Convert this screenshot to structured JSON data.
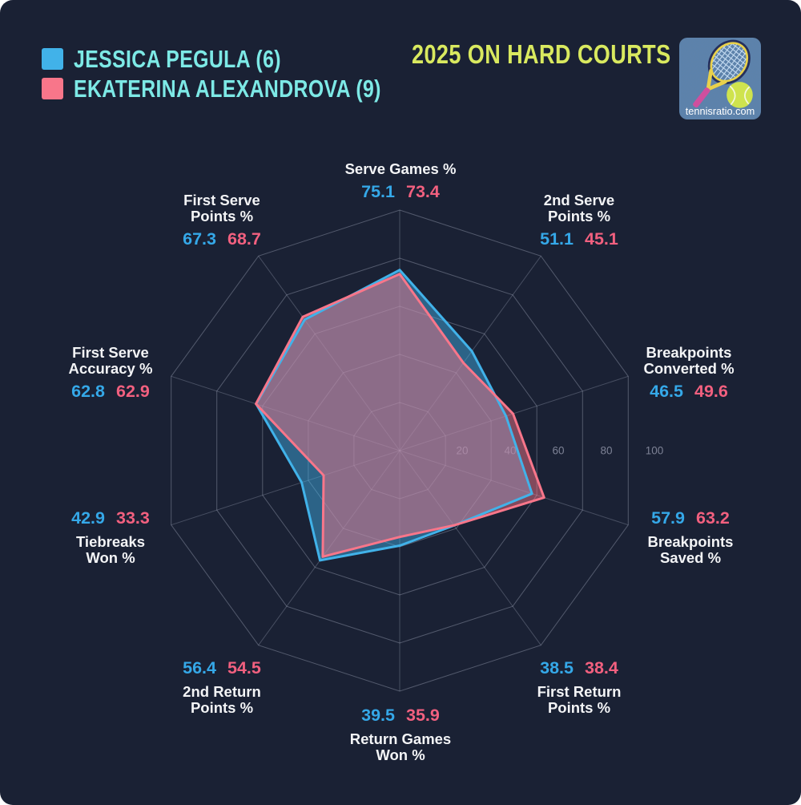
{
  "page": {
    "card_background": "#1a2134"
  },
  "chart_data": {
    "type": "radar",
    "title": "2025 ON HARD COURTS",
    "title_color": "#d9e95f",
    "watermark": "tennisratio.com",
    "legend_position": "top-left",
    "grid": true,
    "radial_axis": {
      "ticks": [
        20,
        40,
        60,
        80,
        100
      ],
      "range": [
        0,
        100
      ]
    },
    "categories": [
      "Serve Games %",
      "2nd Serve Points %",
      "Breakpoints Converted %",
      "Breakpoints Saved %",
      "First Return Points %",
      "Return Games Won %",
      "2nd Return Points %",
      "Tiebreaks Won %",
      "First Serve Accuracy %",
      "First Serve Points %"
    ],
    "series": [
      {
        "name": "JESSICA PEGULA (6)",
        "color": "#41b2e9",
        "fill": "rgba(66,178,233,0.46)",
        "values": [
          75.1,
          51.1,
          46.5,
          57.9,
          38.5,
          39.5,
          56.4,
          42.9,
          62.8,
          67.3
        ]
      },
      {
        "name": "EKATERINA ALEXANDROVA (9)",
        "color": "#f8768a",
        "fill": "rgba(248,118,138,0.47)",
        "values": [
          73.4,
          45.1,
          49.6,
          63.2,
          38.4,
          35.9,
          54.5,
          33.3,
          62.9,
          68.7
        ]
      }
    ]
  }
}
